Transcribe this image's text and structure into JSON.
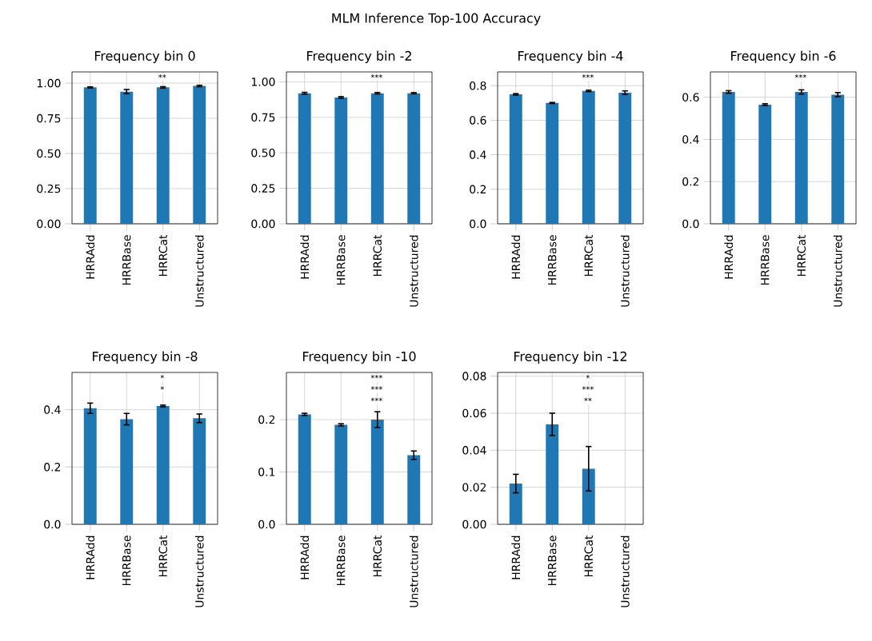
{
  "chart_data": [
    {
      "type": "other",
      "title": "MLM Inference Top-100 Accuracy"
    },
    {
      "type": "bar",
      "title": "Frequency bin 0",
      "categories": [
        "HRRAdd",
        "HRRBase",
        "HRRCat",
        "Unstructured"
      ],
      "values": [
        0.97,
        0.94,
        0.97,
        0.98
      ],
      "errors": [
        0.004,
        0.015,
        0.005,
        0.005
      ],
      "color": "#1f77b4",
      "ylim": [
        0,
        1.08
      ],
      "yticks": [
        {
          "value": 0,
          "label": "0.00"
        },
        {
          "value": 0.25,
          "label": "0.25"
        },
        {
          "value": 0.5,
          "label": "0.50"
        },
        {
          "value": 0.75,
          "label": "0.75"
        },
        {
          "value": 1,
          "label": "1.00"
        }
      ],
      "grid": true,
      "annotations": [
        "**"
      ]
    },
    {
      "type": "bar",
      "title": "Frequency bin -2",
      "categories": [
        "HRRAdd",
        "HRRBase",
        "HRRCat",
        "Unstructured"
      ],
      "values": [
        0.92,
        0.89,
        0.92,
        0.92
      ],
      "errors": [
        0.006,
        0.006,
        0.005,
        0.004
      ],
      "color": "#1f77b4",
      "ylim": [
        0,
        1.07
      ],
      "yticks": [
        {
          "value": 0,
          "label": "0.00"
        },
        {
          "value": 0.25,
          "label": "0.25"
        },
        {
          "value": 0.5,
          "label": "0.50"
        },
        {
          "value": 0.75,
          "label": "0.75"
        },
        {
          "value": 1,
          "label": "1.00"
        }
      ],
      "grid": true,
      "annotations": [
        "***"
      ]
    },
    {
      "type": "bar",
      "title": "Frequency bin -4",
      "categories": [
        "HRRAdd",
        "HRRBase",
        "HRRCat",
        "Unstructured"
      ],
      "values": [
        0.75,
        0.7,
        0.77,
        0.76
      ],
      "errors": [
        0.004,
        0.003,
        0.004,
        0.01
      ],
      "color": "#1f77b4",
      "ylim": [
        0,
        0.88
      ],
      "yticks": [
        {
          "value": 0,
          "label": "0.0"
        },
        {
          "value": 0.2,
          "label": "0.2"
        },
        {
          "value": 0.4,
          "label": "0.4"
        },
        {
          "value": 0.6,
          "label": "0.6"
        },
        {
          "value": 0.8,
          "label": "0.8"
        }
      ],
      "grid": true,
      "annotations": [
        "***"
      ]
    },
    {
      "type": "bar",
      "title": "Frequency bin -6",
      "categories": [
        "HRRAdd",
        "HRRBase",
        "HRRCat",
        "Unstructured"
      ],
      "values": [
        0.625,
        0.565,
        0.625,
        0.612
      ],
      "errors": [
        0.006,
        0.004,
        0.01,
        0.01
      ],
      "color": "#1f77b4",
      "ylim": [
        0,
        0.72
      ],
      "yticks": [
        {
          "value": 0,
          "label": "0.0"
        },
        {
          "value": 0.2,
          "label": "0.2"
        },
        {
          "value": 0.4,
          "label": "0.4"
        },
        {
          "value": 0.6,
          "label": "0.6"
        }
      ],
      "grid": true,
      "annotations": [
        "***"
      ]
    },
    {
      "type": "bar",
      "title": "Frequency bin -8",
      "categories": [
        "HRRAdd",
        "HRRBase",
        "HRRCat",
        "Unstructured"
      ],
      "values": [
        0.405,
        0.367,
        0.413,
        0.37
      ],
      "errors": [
        0.018,
        0.02,
        0.003,
        0.015
      ],
      "color": "#1f77b4",
      "ylim": [
        0,
        0.53
      ],
      "yticks": [
        {
          "value": 0,
          "label": "0.0"
        },
        {
          "value": 0.2,
          "label": "0.2"
        },
        {
          "value": 0.4,
          "label": "0.4"
        }
      ],
      "grid": true,
      "annotations": [
        "*",
        "*"
      ]
    },
    {
      "type": "bar",
      "title": "Frequency bin -10",
      "categories": [
        "HRRAdd",
        "HRRBase",
        "HRRCat",
        "Unstructured"
      ],
      "values": [
        0.21,
        0.19,
        0.2,
        0.132
      ],
      "errors": [
        0.002,
        0.002,
        0.015,
        0.008
      ],
      "color": "#1f77b4",
      "ylim": [
        0,
        0.29
      ],
      "yticks": [
        {
          "value": 0,
          "label": "0.0"
        },
        {
          "value": 0.1,
          "label": "0.1"
        },
        {
          "value": 0.2,
          "label": "0.2"
        }
      ],
      "grid": true,
      "annotations": [
        "***",
        "***",
        "***"
      ]
    },
    {
      "type": "bar",
      "title": "Frequency bin -12",
      "categories": [
        "HRRAdd",
        "HRRBase",
        "HRRCat",
        "Unstructured"
      ],
      "values": [
        0.022,
        0.054,
        0.03,
        0
      ],
      "errors": [
        0.005,
        0.006,
        0.012,
        null
      ],
      "color": "#1f77b4",
      "ylim": [
        0,
        0.082
      ],
      "yticks": [
        {
          "value": 0,
          "label": "0.00"
        },
        {
          "value": 0.02,
          "label": "0.02"
        },
        {
          "value": 0.04,
          "label": "0.04"
        },
        {
          "value": 0.06,
          "label": "0.06"
        },
        {
          "value": 0.08,
          "label": "0.08"
        }
      ],
      "grid": true,
      "annotations": [
        "*",
        "***",
        "**"
      ]
    }
  ]
}
